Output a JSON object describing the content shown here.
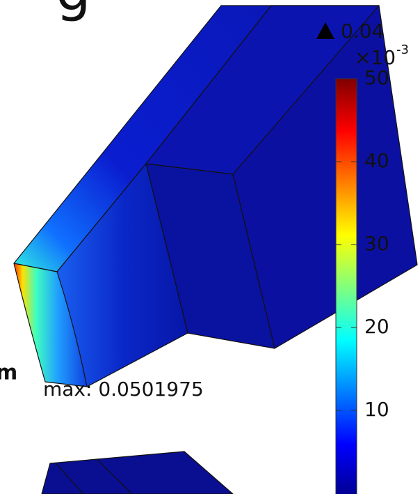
{
  "annotations": {
    "top_fragment": "g",
    "left_fragment": "m",
    "max_label": "max: 0.0501975",
    "top_value": "0.04",
    "exponent_base": "×10",
    "exponent": "-3"
  },
  "colorbar": {
    "lim": [
      0,
      50
    ],
    "ticks": [
      10,
      20,
      30,
      40,
      50
    ]
  }
}
